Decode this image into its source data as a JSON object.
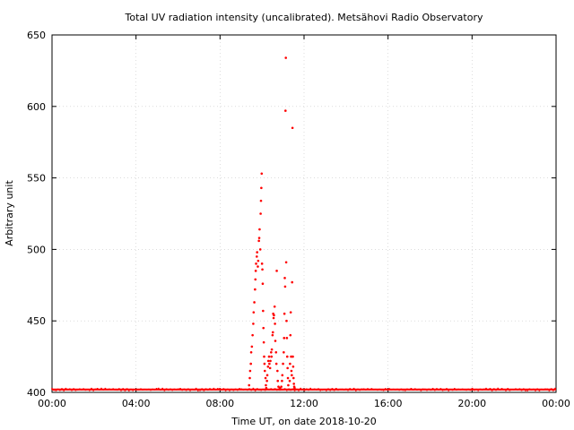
{
  "chart_data": {
    "type": "scatter",
    "title": "Total UV radiation intensity (uncalibrated). Metsähovi Radio Observatory",
    "xlabel": "Time UT, on date 2018-10-20",
    "ylabel": "Arbitrary unit",
    "xlim": [
      "00:00",
      "24:00"
    ],
    "ylim": [
      400,
      650
    ],
    "x_ticks": [
      "00:00",
      "04:00",
      "08:00",
      "12:00",
      "16:00",
      "20:00",
      "00:00"
    ],
    "y_ticks": [
      400,
      450,
      500,
      550,
      600,
      650
    ],
    "grid": true,
    "marker_color": "#ff0000",
    "series": [
      {
        "baseline": {
          "value": 402,
          "from": "00:00",
          "to": "24:00"
        },
        "points": [
          [
            "09:23",
            405
          ],
          [
            "09:25",
            410
          ],
          [
            "09:26",
            415
          ],
          [
            "09:28",
            420
          ],
          [
            "09:29",
            428
          ],
          [
            "09:31",
            432
          ],
          [
            "09:33",
            440
          ],
          [
            "09:35",
            448
          ],
          [
            "09:36",
            456
          ],
          [
            "09:38",
            463
          ],
          [
            "09:40",
            472
          ],
          [
            "09:41",
            479
          ],
          [
            "09:42",
            485
          ],
          [
            "09:43",
            490
          ],
          [
            "09:45",
            495
          ],
          [
            "09:46",
            498
          ],
          [
            "09:48",
            488
          ],
          [
            "09:49",
            492
          ],
          [
            "09:51",
            506
          ],
          [
            "09:52",
            508
          ],
          [
            "09:53",
            514
          ],
          [
            "09:55",
            500
          ],
          [
            "09:56",
            525
          ],
          [
            "09:57",
            534
          ],
          [
            "09:58",
            543
          ],
          [
            "09:59",
            553
          ],
          [
            "10:00",
            490
          ],
          [
            "10:01",
            486
          ],
          [
            "10:02",
            476
          ],
          [
            "10:03",
            457
          ],
          [
            "10:04",
            445
          ],
          [
            "10:05",
            435
          ],
          [
            "10:06",
            425
          ],
          [
            "10:07",
            420
          ],
          [
            "10:08",
            415
          ],
          [
            "10:10",
            410
          ],
          [
            "10:11",
            405
          ],
          [
            "10:12",
            403
          ],
          [
            "10:14",
            408
          ],
          [
            "10:15",
            412
          ],
          [
            "10:17",
            418
          ],
          [
            "10:18",
            422
          ],
          [
            "10:20",
            425
          ],
          [
            "10:21",
            420
          ],
          [
            "10:23",
            417
          ],
          [
            "10:24",
            422
          ],
          [
            "10:26",
            428
          ],
          [
            "10:27",
            425
          ],
          [
            "10:28",
            430
          ],
          [
            "10:30",
            440
          ],
          [
            "10:31",
            442
          ],
          [
            "10:32",
            455
          ],
          [
            "10:33",
            452
          ],
          [
            "10:34",
            454
          ],
          [
            "10:36",
            460
          ],
          [
            "10:37",
            448
          ],
          [
            "10:38",
            436
          ],
          [
            "10:40",
            428
          ],
          [
            "10:41",
            420
          ],
          [
            "10:42",
            485
          ],
          [
            "10:44",
            415
          ],
          [
            "10:45",
            408
          ],
          [
            "10:47",
            404
          ],
          [
            "10:49",
            402
          ],
          [
            "10:51",
            403
          ],
          [
            "10:53",
            402
          ],
          [
            "10:55",
            404
          ],
          [
            "10:57",
            408
          ],
          [
            "10:58",
            412
          ],
          [
            "11:00",
            420
          ],
          [
            "11:02",
            428
          ],
          [
            "11:03",
            438
          ],
          [
            "11:04",
            455
          ],
          [
            "11:05",
            480
          ],
          [
            "11:06",
            474
          ],
          [
            "11:07",
            597
          ],
          [
            "11:08",
            634
          ],
          [
            "11:09",
            491
          ],
          [
            "11:10",
            450
          ],
          [
            "11:11",
            438
          ],
          [
            "11:12",
            425
          ],
          [
            "11:13",
            417
          ],
          [
            "11:14",
            410
          ],
          [
            "11:15",
            405
          ],
          [
            "11:17",
            402
          ],
          [
            "11:19",
            408
          ],
          [
            "11:20",
            420
          ],
          [
            "11:21",
            440
          ],
          [
            "11:22",
            456
          ],
          [
            "11:23",
            425
          ],
          [
            "11:24",
            415
          ],
          [
            "11:25",
            412
          ],
          [
            "11:26",
            477
          ],
          [
            "11:27",
            585
          ],
          [
            "11:28",
            425
          ],
          [
            "11:29",
            418
          ],
          [
            "11:30",
            410
          ],
          [
            "11:31",
            406
          ],
          [
            "11:32",
            404
          ],
          [
            "11:33",
            403
          ]
        ]
      }
    ]
  }
}
